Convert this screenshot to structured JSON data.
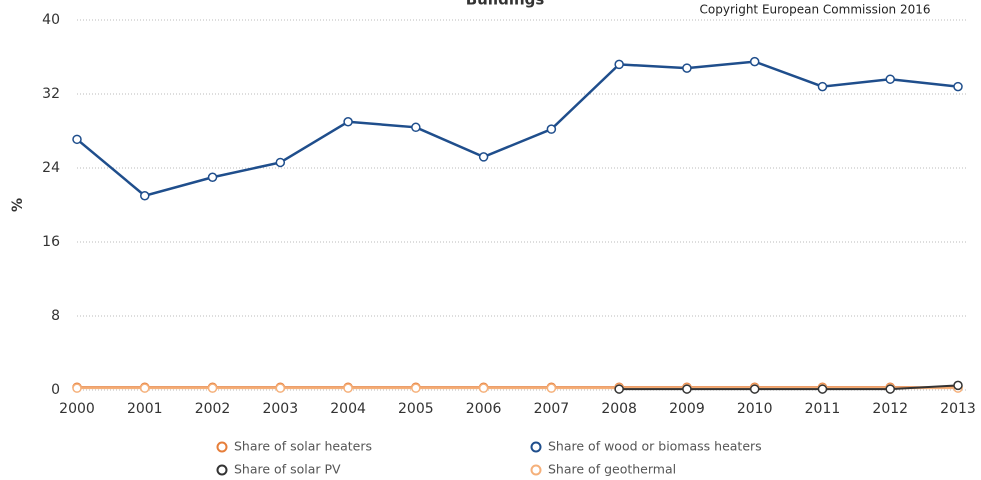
{
  "chart_data": {
    "type": "line",
    "title": "Buildings",
    "annotation": "Copyright European Commission 2016",
    "y_label": "%",
    "categories": [
      "2000",
      "2001",
      "2002",
      "2003",
      "2004",
      "2005",
      "2006",
      "2007",
      "2008",
      "2009",
      "2010",
      "2011",
      "2012",
      "2013"
    ],
    "ylim": [
      0,
      40
    ],
    "yticks": [
      0,
      8,
      16,
      24,
      32,
      40
    ],
    "grid": true,
    "series": [
      {
        "name": "Share of solar heaters",
        "color": "#e67e3a",
        "values": [
          0.3,
          0.3,
          0.3,
          0.3,
          0.3,
          0.3,
          0.3,
          0.3,
          0.3,
          0.3,
          0.3,
          0.3,
          0.3,
          0.3
        ]
      },
      {
        "name": "Share of wood or biomass heaters",
        "color": "#1f4e8c",
        "values": [
          27.1,
          21.0,
          23.0,
          24.6,
          29.0,
          28.4,
          25.2,
          28.2,
          35.2,
          34.8,
          35.5,
          32.8,
          33.6,
          32.8
        ]
      },
      {
        "name": "Share of solar PV",
        "color": "#333333",
        "values": [
          null,
          null,
          null,
          null,
          null,
          null,
          null,
          null,
          0.1,
          0.1,
          0.1,
          0.1,
          0.1,
          0.5
        ]
      },
      {
        "name": "Share of geothermal",
        "color": "#f5b07a",
        "values": [
          0.2,
          0.2,
          0.2,
          0.2,
          0.2,
          0.2,
          0.2,
          0.2,
          0.2,
          0.2,
          0.2,
          0.2,
          0.2,
          0.2
        ]
      }
    ]
  }
}
